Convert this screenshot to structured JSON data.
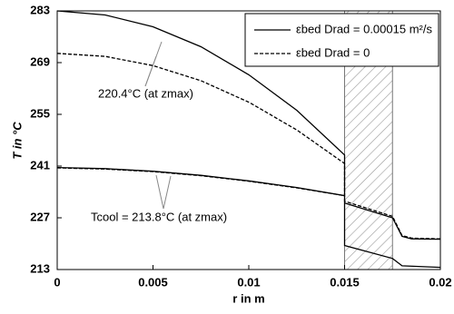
{
  "chart_data": {
    "type": "line",
    "xlabel": "r in m",
    "ylabel": "T in °C",
    "x": [
      0,
      0.0025,
      0.005,
      0.0075,
      0.01,
      0.0125,
      0.015,
      0.015,
      0.0175,
      0.018,
      0.0185,
      0.02,
      null,
      0,
      0.0025,
      0.005,
      0.0075,
      0.01,
      0.0125,
      0.015,
      0.015,
      0.0175,
      0.018,
      0.02
    ],
    "series": [
      {
        "name": "εbed Drad = 0.00015 m²/s",
        "color": "#000000",
        "dash": false,
        "values": [
          283,
          281.9,
          278.7,
          273.3,
          265.7,
          256.1,
          244,
          231,
          227,
          222,
          221.3,
          221.2,
          null,
          240.6,
          240.3,
          239.6,
          238.5,
          237,
          235.2,
          233,
          219.5,
          216,
          214,
          213.6
        ]
      },
      {
        "name": "εbed Drad = 0",
        "color": "#000000",
        "dash": true,
        "values": [
          271.5,
          270.7,
          268.2,
          264.1,
          258.3,
          250.8,
          241.7,
          231.5,
          227.4,
          222.2,
          221.5,
          221.3,
          null,
          240.5,
          240.2,
          239.5,
          238.4,
          236.9,
          235.1,
          233,
          null,
          null,
          null,
          null
        ]
      }
    ],
    "band": [
      0.015,
      0.0175
    ],
    "annotations": [
      "220.4°C (at zmax)",
      "Tcool = 213.8°C (at zmax)"
    ],
    "xlim": [
      0,
      0.02
    ],
    "xticks": [
      0,
      0.005,
      0.01,
      0.015,
      0.02
    ],
    "ylim": [
      213,
      283
    ],
    "yticks": [
      213,
      227,
      241,
      255,
      269,
      283
    ],
    "grid": false
  }
}
